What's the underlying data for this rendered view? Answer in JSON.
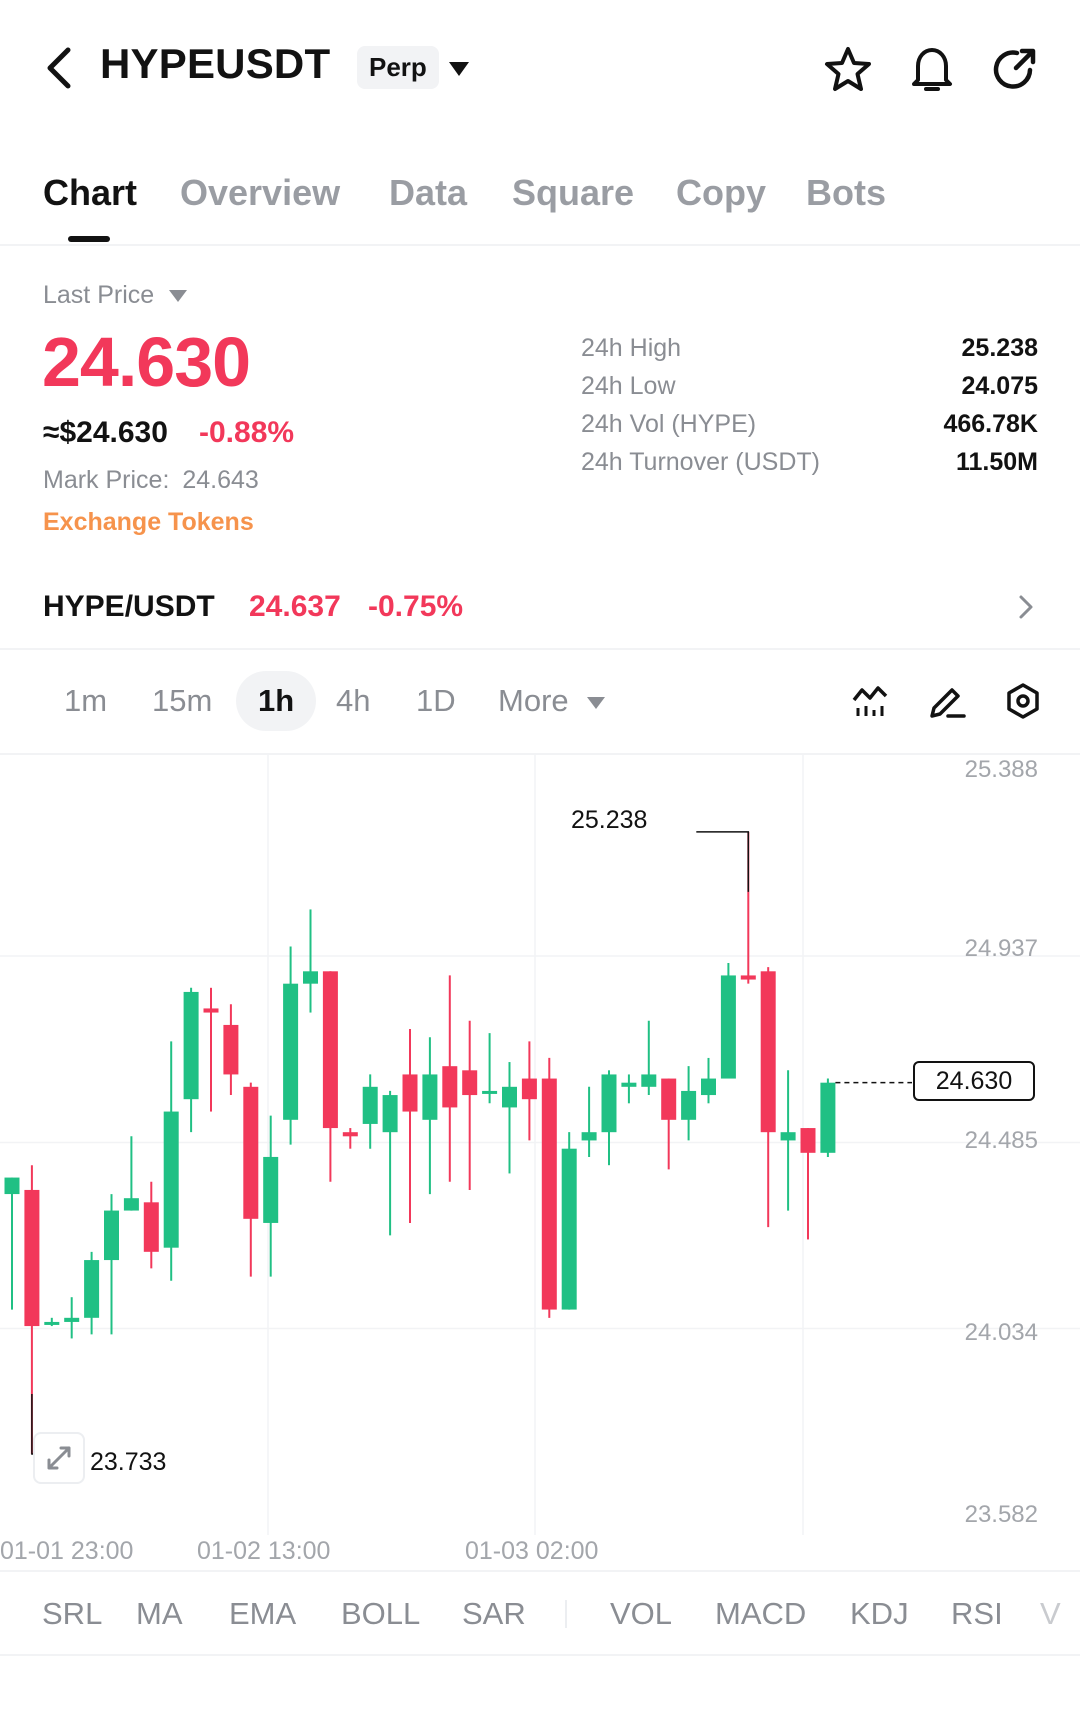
{
  "header": {
    "symbol": "HYPEUSDT",
    "contract_type": "Perp",
    "icons": [
      "back-chevron-icon",
      "star-icon",
      "bell-icon",
      "share-icon"
    ]
  },
  "tabs": [
    {
      "label": "Chart",
      "active": true
    },
    {
      "label": "Overview",
      "active": false
    },
    {
      "label": "Data",
      "active": false
    },
    {
      "label": "Square",
      "active": false
    },
    {
      "label": "Copy",
      "active": false
    },
    {
      "label": "Bots",
      "active": false
    }
  ],
  "price": {
    "selector_label": "Last Price",
    "last_price": "24.630",
    "usd_equivalent": "≈$24.630",
    "change_pct": "-0.88%",
    "mark_price_label": "Mark Price:",
    "mark_price": "24.643",
    "exchange_tokens": "Exchange Tokens"
  },
  "stats": [
    {
      "label": "24h  High",
      "value": "25.238"
    },
    {
      "label": "24h  Low",
      "value": "24.075"
    },
    {
      "label": "24h  Vol (HYPE)",
      "value": "466.78K"
    },
    {
      "label": "24h  Turnover (USDT)",
      "value": "11.50M"
    }
  ],
  "spot": {
    "pair": "HYPE/USDT",
    "price": "24.637",
    "change": "-0.75%"
  },
  "intervals": {
    "items": [
      "1m",
      "15m",
      "1h",
      "4h",
      "1D"
    ],
    "selected": "1h",
    "more_label": "More"
  },
  "colors": {
    "up": "#20c084",
    "down": "#f2385a",
    "accent": "#f6934c",
    "text": "#121212",
    "muted": "#8a8d93"
  },
  "chart_data": {
    "type": "candlestick",
    "price_axis": [
      "25.388",
      "24.937",
      "24.485",
      "24.034",
      "23.582"
    ],
    "ylim": [
      23.582,
      25.388
    ],
    "time_labels": [
      "01-01 23:00",
      "01-02 13:00",
      "01-03 02:00"
    ],
    "high_annotation": "25.238",
    "low_annotation": "23.733",
    "current_price_tag": "24.630",
    "candles": [
      {
        "o": 24.36,
        "h": 24.4,
        "l": 24.08,
        "c": 24.4
      },
      {
        "o": 24.37,
        "h": 24.43,
        "l": 23.73,
        "c": 24.04
      },
      {
        "o": 24.05,
        "h": 24.06,
        "l": 24.04,
        "c": 24.05
      },
      {
        "o": 24.05,
        "h": 24.11,
        "l": 24.01,
        "c": 24.06
      },
      {
        "o": 24.06,
        "h": 24.22,
        "l": 24.02,
        "c": 24.2
      },
      {
        "o": 24.2,
        "h": 24.36,
        "l": 24.02,
        "c": 24.32
      },
      {
        "o": 24.32,
        "h": 24.5,
        "l": 24.32,
        "c": 24.35
      },
      {
        "o": 24.34,
        "h": 24.39,
        "l": 24.18,
        "c": 24.22
      },
      {
        "o": 24.23,
        "h": 24.73,
        "l": 24.15,
        "c": 24.56
      },
      {
        "o": 24.59,
        "h": 24.86,
        "l": 24.51,
        "c": 24.85
      },
      {
        "o": 24.81,
        "h": 24.86,
        "l": 24.56,
        "c": 24.8
      },
      {
        "o": 24.77,
        "h": 24.82,
        "l": 24.6,
        "c": 24.65
      },
      {
        "o": 24.62,
        "h": 24.63,
        "l": 24.16,
        "c": 24.3
      },
      {
        "o": 24.29,
        "h": 24.55,
        "l": 24.16,
        "c": 24.45
      },
      {
        "o": 24.54,
        "h": 24.96,
        "l": 24.48,
        "c": 24.87
      },
      {
        "o": 24.87,
        "h": 25.05,
        "l": 24.8,
        "c": 24.9
      },
      {
        "o": 24.9,
        "h": 24.9,
        "l": 24.39,
        "c": 24.52
      },
      {
        "o": 24.51,
        "h": 24.52,
        "l": 24.47,
        "c": 24.5
      },
      {
        "o": 24.53,
        "h": 24.65,
        "l": 24.47,
        "c": 24.62
      },
      {
        "o": 24.51,
        "h": 24.61,
        "l": 24.26,
        "c": 24.6
      },
      {
        "o": 24.65,
        "h": 24.76,
        "l": 24.29,
        "c": 24.56
      },
      {
        "o": 24.54,
        "h": 24.74,
        "l": 24.36,
        "c": 24.65
      },
      {
        "o": 24.67,
        "h": 24.89,
        "l": 24.39,
        "c": 24.57
      },
      {
        "o": 24.66,
        "h": 24.78,
        "l": 24.37,
        "c": 24.6
      },
      {
        "o": 24.61,
        "h": 24.75,
        "l": 24.58,
        "c": 24.61
      },
      {
        "o": 24.57,
        "h": 24.68,
        "l": 24.41,
        "c": 24.62
      },
      {
        "o": 24.64,
        "h": 24.73,
        "l": 24.49,
        "c": 24.59
      },
      {
        "o": 24.64,
        "h": 24.69,
        "l": 24.06,
        "c": 24.08
      },
      {
        "o": 24.08,
        "h": 24.51,
        "l": 24.08,
        "c": 24.47
      },
      {
        "o": 24.49,
        "h": 24.62,
        "l": 24.45,
        "c": 24.51
      },
      {
        "o": 24.51,
        "h": 24.66,
        "l": 24.43,
        "c": 24.65
      },
      {
        "o": 24.62,
        "h": 24.65,
        "l": 24.58,
        "c": 24.63
      },
      {
        "o": 24.62,
        "h": 24.78,
        "l": 24.6,
        "c": 24.65
      },
      {
        "o": 24.64,
        "h": 24.64,
        "l": 24.42,
        "c": 24.54
      },
      {
        "o": 24.54,
        "h": 24.67,
        "l": 24.49,
        "c": 24.61
      },
      {
        "o": 24.6,
        "h": 24.69,
        "l": 24.58,
        "c": 24.64
      },
      {
        "o": 24.64,
        "h": 24.92,
        "l": 24.64,
        "c": 24.89
      },
      {
        "o": 24.89,
        "h": 25.238,
        "l": 24.87,
        "c": 24.88
      },
      {
        "o": 24.9,
        "h": 24.91,
        "l": 24.28,
        "c": 24.51
      },
      {
        "o": 24.49,
        "h": 24.66,
        "l": 24.32,
        "c": 24.51
      },
      {
        "o": 24.52,
        "h": 24.52,
        "l": 24.25,
        "c": 24.46
      },
      {
        "o": 24.46,
        "h": 24.64,
        "l": 24.45,
        "c": 24.63
      }
    ]
  },
  "indicators": {
    "main": [
      "SRL",
      "MA",
      "EMA",
      "BOLL",
      "SAR"
    ],
    "sub": [
      "VOL",
      "MACD",
      "KDJ",
      "RSI",
      "V"
    ]
  }
}
